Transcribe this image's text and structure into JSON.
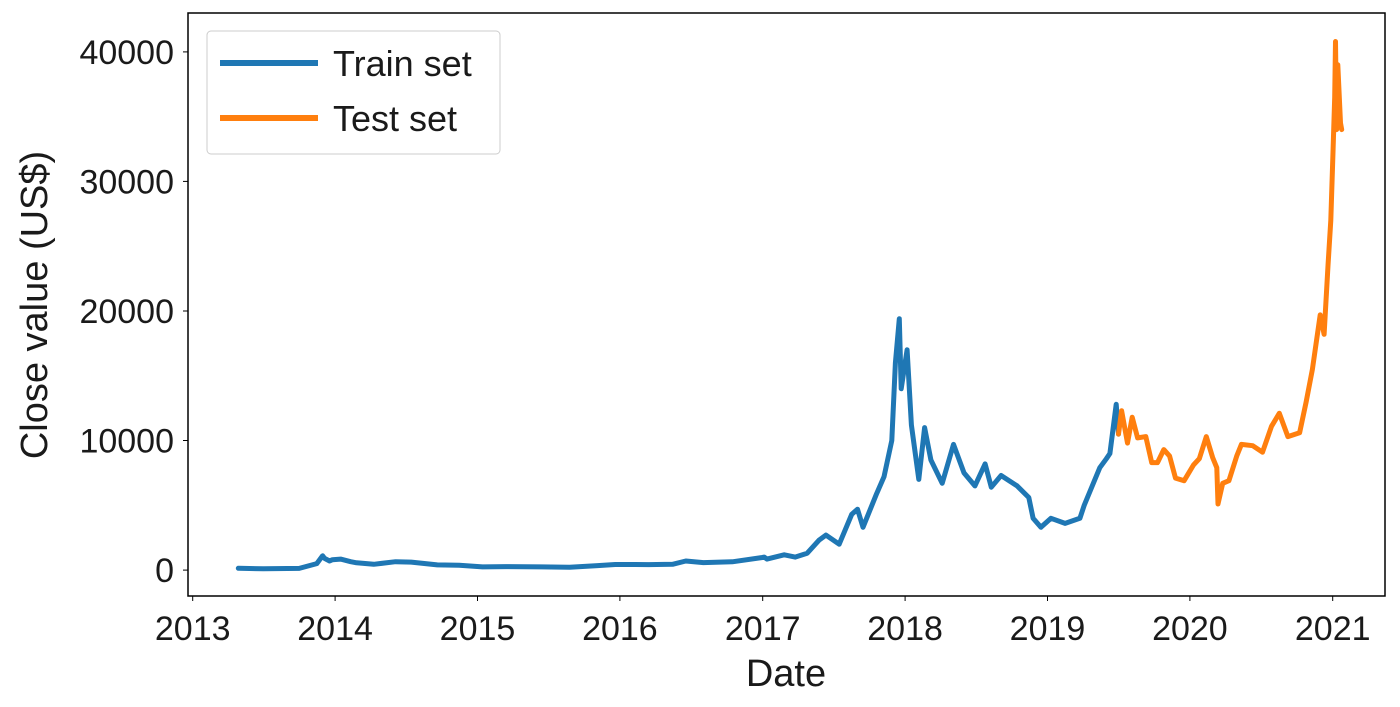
{
  "chart_data": {
    "type": "line",
    "title": "",
    "xlabel": "Date",
    "ylabel": "Close value (US$)",
    "xlim": [
      "2012-12-20",
      "2021-05-15"
    ],
    "ylim": [
      -2000,
      43000
    ],
    "x_ticks": [
      "2013",
      "2014",
      "2015",
      "2016",
      "2017",
      "2018",
      "2019",
      "2020",
      "2021"
    ],
    "y_ticks": [
      0,
      10000,
      20000,
      30000,
      40000
    ],
    "y_tick_labels": [
      "0",
      "10000",
      "20000",
      "30000",
      "40000"
    ],
    "grid": false,
    "legend_position": "top-left",
    "series": [
      {
        "name": "Train set",
        "color": "#1f77b4",
        "x": [
          "2013-04-28",
          "2013-07-01",
          "2013-10-01",
          "2013-11-15",
          "2013-11-30",
          "2013-12-05",
          "2013-12-18",
          "2013-12-25",
          "2014-01-15",
          "2014-02-10",
          "2014-02-25",
          "2014-04-10",
          "2014-06-05",
          "2014-07-15",
          "2014-09-20",
          "2014-11-15",
          "2015-01-14",
          "2015-03-15",
          "2015-06-15",
          "2015-08-25",
          "2015-11-05",
          "2015-12-20",
          "2016-03-15",
          "2016-05-15",
          "2016-06-18",
          "2016-08-02",
          "2016-10-15",
          "2016-12-31",
          "2017-01-05",
          "2017-01-12",
          "2017-02-25",
          "2017-03-25",
          "2017-04-25",
          "2017-05-25",
          "2017-06-12",
          "2017-07-16",
          "2017-08-17",
          "2017-09-01",
          "2017-09-15",
          "2017-10-20",
          "2017-11-08",
          "2017-11-28",
          "2017-12-07",
          "2017-12-17",
          "2017-12-22",
          "2018-01-06",
          "2018-01-17",
          "2018-02-05",
          "2018-02-20",
          "2018-03-08",
          "2018-04-06",
          "2018-05-05",
          "2018-06-01",
          "2018-06-29",
          "2018-07-25",
          "2018-08-10",
          "2018-09-04",
          "2018-10-15",
          "2018-11-14",
          "2018-11-25",
          "2018-12-15",
          "2019-01-10",
          "2019-02-15",
          "2019-03-25",
          "2019-04-05",
          "2019-05-15",
          "2019-06-01",
          "2019-06-10",
          "2019-06-26",
          "2019-07-02"
        ],
        "values": [
          140,
          100,
          130,
          500,
          1100,
          900,
          700,
          800,
          850,
          650,
          560,
          450,
          650,
          620,
          400,
          370,
          250,
          270,
          250,
          220,
          350,
          430,
          420,
          450,
          700,
          580,
          640,
          970,
          1000,
          850,
          1180,
          1000,
          1300,
          2300,
          2700,
          2000,
          4300,
          4700,
          3300,
          5900,
          7200,
          10000,
          16000,
          19400,
          14000,
          17000,
          11200,
          7000,
          11000,
          8500,
          6700,
          9700,
          7500,
          6500,
          8200,
          6400,
          7300,
          6500,
          5600,
          4000,
          3300,
          4000,
          3600,
          4000,
          5000,
          7900,
          8600,
          9000,
          12800,
          10500
        ]
      },
      {
        "name": "Test set",
        "color": "#ff7f0e",
        "x": [
          "2019-07-02",
          "2019-07-10",
          "2019-07-25",
          "2019-08-06",
          "2019-08-20",
          "2019-09-10",
          "2019-09-25",
          "2019-10-10",
          "2019-10-26",
          "2019-11-10",
          "2019-11-25",
          "2019-12-17",
          "2020-01-10",
          "2020-01-25",
          "2020-02-12",
          "2020-02-28",
          "2020-03-10",
          "2020-03-13",
          "2020-03-25",
          "2020-04-10",
          "2020-04-30",
          "2020-05-12",
          "2020-06-10",
          "2020-07-05",
          "2020-07-28",
          "2020-08-17",
          "2020-09-08",
          "2020-10-08",
          "2020-10-25",
          "2020-11-10",
          "2020-11-30",
          "2020-12-10",
          "2020-12-20",
          "2020-12-27",
          "2021-01-02",
          "2021-01-06",
          "2021-01-08",
          "2021-01-11",
          "2021-01-14",
          "2021-01-21",
          "2021-01-24"
        ],
        "values": [
          10500,
          12300,
          9800,
          11800,
          10200,
          10300,
          8300,
          8300,
          9300,
          8800,
          7100,
          6900,
          8100,
          8600,
          10300,
          8700,
          7900,
          5100,
          6700,
          6900,
          8800,
          9700,
          9600,
          9100,
          11100,
          12100,
          10300,
          10600,
          13000,
          15500,
          19700,
          18200,
          23500,
          27000,
          32500,
          36500,
          40800,
          34000,
          39000,
          34500,
          34000
        ]
      }
    ]
  }
}
